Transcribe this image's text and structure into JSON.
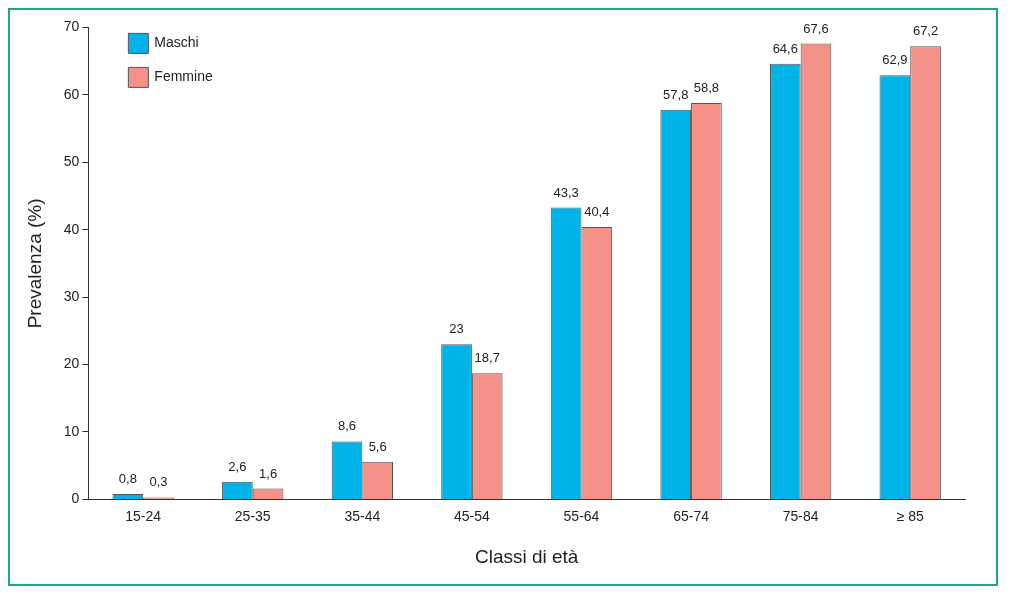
{
  "chart_data": {
    "type": "bar",
    "xlabel": "Classi di età",
    "ylabel": "Prevalenza (%)",
    "categories": [
      "15-24",
      "25-35",
      "35-44",
      "45-54",
      "55-64",
      "65-74",
      "75-84",
      "≥ 85"
    ],
    "series": [
      {
        "name": "Maschi",
        "color": "#00b4ea",
        "values": [
          0.8,
          2.6,
          8.6,
          23,
          43.3,
          57.8,
          64.6,
          62.9
        ],
        "value_labels": [
          "0,8",
          "2,6",
          "8,6",
          "23",
          "43,3",
          "57,8",
          "64,6",
          "62,9"
        ]
      },
      {
        "name": "Femmine",
        "color": "#f4928a",
        "values": [
          0.3,
          1.6,
          5.6,
          18.7,
          40.4,
          58.8,
          67.6,
          67.2
        ],
        "value_labels": [
          "0,3",
          "1,6",
          "5,6",
          "18,7",
          "40,4",
          "58,8",
          "67,6",
          "67,2"
        ]
      }
    ],
    "ylim": [
      0,
      70
    ],
    "yticks": [
      0,
      10,
      20,
      30,
      40,
      50,
      60,
      70
    ],
    "grid": false,
    "legend": "top left"
  }
}
